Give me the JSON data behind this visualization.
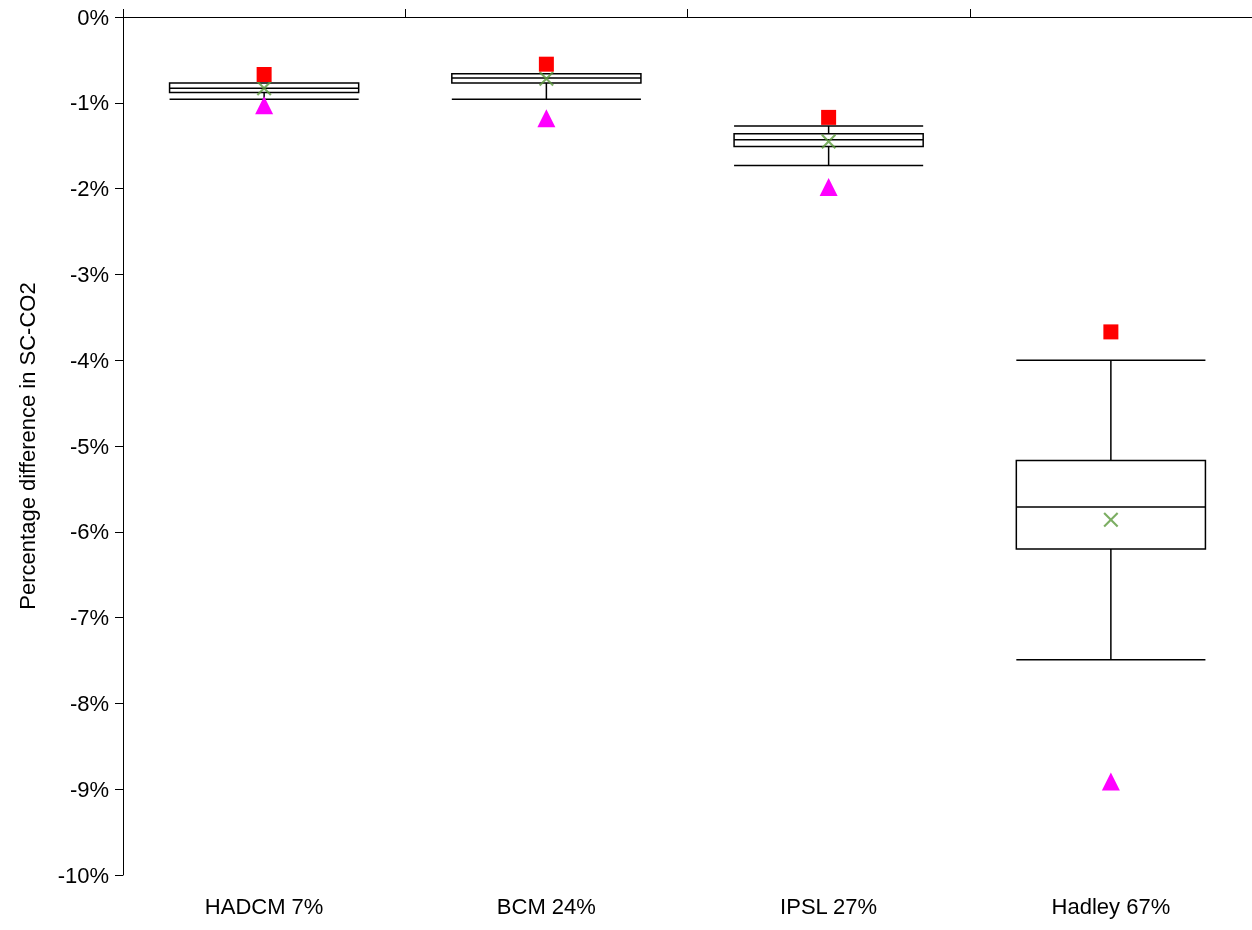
{
  "chart_data": {
    "type": "box",
    "ylabel": "Percentage difference in SC-CO2",
    "categories": [
      "HADCM 7%",
      "BCM 24%",
      "IPSL 27%",
      "Hadley 67%"
    ],
    "boxes": [
      {
        "low": -0.96,
        "q1": -0.88,
        "median": -0.83,
        "q3": -0.77,
        "high": -0.77,
        "mean": -0.83
      },
      {
        "low": -0.96,
        "q1": -0.77,
        "median": -0.71,
        "q3": -0.66,
        "high": -0.66,
        "mean": -0.72
      },
      {
        "low": -1.73,
        "q1": -1.51,
        "median": -1.43,
        "q3": -1.36,
        "high": -1.27,
        "mean": -1.45
      },
      {
        "low": -7.49,
        "q1": -6.2,
        "median": -5.71,
        "q3": -5.17,
        "high": -4.0,
        "mean": -5.86
      }
    ],
    "series": [
      {
        "type": "scatter",
        "marker": "square",
        "color": "#ff0000",
        "x": [
          "HADCM 7%",
          "BCM 24%",
          "IPSL 27%",
          "Hadley 67%"
        ],
        "values": [
          -0.67,
          -0.55,
          -1.17,
          -3.67
        ]
      },
      {
        "type": "scatter",
        "marker": "triangle",
        "color": "#ff00ff",
        "x": [
          "HADCM 7%",
          "BCM 24%",
          "IPSL 27%",
          "Hadley 67%"
        ],
        "values": [
          -1.03,
          -1.18,
          -1.98,
          -8.91
        ]
      }
    ],
    "ylim": [
      -10,
      0
    ],
    "yticks": [
      {
        "value": -10,
        "label": "-10%"
      },
      {
        "value": -9,
        "label": "-9%"
      },
      {
        "value": -8,
        "label": "-8%"
      },
      {
        "value": -7,
        "label": "-7%"
      },
      {
        "value": -6,
        "label": "-6%"
      },
      {
        "value": -5,
        "label": "-5%"
      },
      {
        "value": -4,
        "label": "-4%"
      },
      {
        "value": -3,
        "label": "-3%"
      },
      {
        "value": -2,
        "label": "-2%"
      },
      {
        "value": -1,
        "label": "-1%"
      },
      {
        "value": 0,
        "label": "0%"
      }
    ],
    "grid": false
  }
}
